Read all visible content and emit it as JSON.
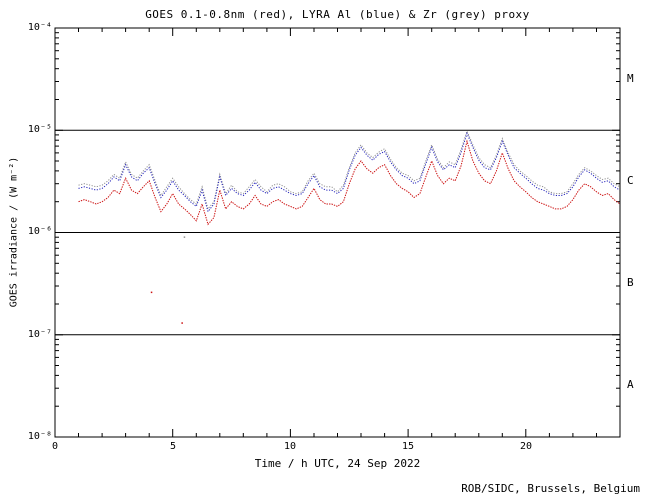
{
  "page": {
    "footer": "ROB/SIDC, Brussels, Belgium"
  },
  "chart_data": {
    "type": "line",
    "title": "GOES 0.1-0.8nm (red), LYRA Al (blue) & Zr (grey) proxy",
    "xlabel": "Time / h UTC, 24 Sep 2022",
    "ylabel": "GOES irradiance / (W m⁻²)",
    "xlim": [
      0,
      24
    ],
    "ylim": [
      1e-08,
      0.0001
    ],
    "y_scale": "log",
    "grid": false,
    "legend_position": "none (colors named in title)",
    "x_major_ticks": [
      0,
      5,
      10,
      15,
      20
    ],
    "x_tick_labels": [
      "0",
      "5",
      "10",
      "15",
      "20"
    ],
    "y_tick_labels": [
      "10⁻⁴",
      "10⁻⁵",
      "10⁻⁶",
      "10⁻⁷",
      "10⁻⁸"
    ],
    "hlines": [
      1e-05,
      1e-06,
      1e-07
    ],
    "flare_class_labels": [
      {
        "label": "M",
        "y": 3.16e-05
      },
      {
        "label": "C",
        "y": 3.16e-06
      },
      {
        "label": "B",
        "y": 3.16e-07
      },
      {
        "label": "A",
        "y": 3.16e-08
      }
    ],
    "value_scale": 1e-06,
    "x": [
      1,
      1.25,
      1.5,
      1.75,
      2,
      2.25,
      2.5,
      2.75,
      3,
      3.25,
      3.5,
      3.75,
      4,
      4.25,
      4.5,
      4.75,
      5,
      5.25,
      5.5,
      5.75,
      6,
      6.25,
      6.5,
      6.75,
      7,
      7.25,
      7.5,
      7.75,
      8,
      8.25,
      8.5,
      8.75,
      9,
      9.25,
      9.5,
      9.75,
      10,
      10.25,
      10.5,
      10.75,
      11,
      11.25,
      11.5,
      11.75,
      12,
      12.25,
      12.5,
      12.75,
      13,
      13.25,
      13.5,
      13.75,
      14,
      14.25,
      14.5,
      14.75,
      15,
      15.25,
      15.5,
      15.75,
      16,
      16.25,
      16.5,
      16.75,
      17,
      17.25,
      17.5,
      17.75,
      18,
      18.25,
      18.5,
      18.75,
      19,
      19.25,
      19.5,
      19.75,
      20,
      20.25,
      20.5,
      20.75,
      21,
      21.25,
      21.5,
      21.75,
      22,
      22.25,
      22.5,
      22.75,
      23,
      23.25,
      23.5,
      23.75,
      24
    ],
    "series": [
      {
        "name": "LYRA Zr proxy",
        "color": "#909090",
        "dash": "1.2,1.5",
        "values": [
          2.9,
          3.0,
          2.9,
          2.8,
          2.9,
          3.2,
          3.7,
          3.4,
          4.9,
          3.7,
          3.4,
          4.0,
          4.6,
          3.2,
          2.3,
          2.8,
          3.4,
          2.8,
          2.4,
          2.1,
          1.9,
          2.8,
          1.7,
          2.0,
          3.7,
          2.4,
          2.9,
          2.5,
          2.4,
          2.8,
          3.3,
          2.8,
          2.5,
          2.9,
          3.0,
          2.8,
          2.5,
          2.4,
          2.5,
          3.2,
          3.8,
          3.0,
          2.8,
          2.8,
          2.5,
          2.9,
          4.3,
          6.0,
          7.2,
          6.0,
          5.4,
          6.1,
          6.6,
          5.2,
          4.3,
          3.8,
          3.6,
          3.2,
          3.4,
          5.0,
          7.2,
          5.2,
          4.3,
          4.9,
          4.6,
          6.5,
          9.8,
          7.2,
          5.4,
          4.6,
          4.3,
          5.7,
          8.3,
          6.0,
          4.6,
          4.0,
          3.6,
          3.2,
          2.9,
          2.8,
          2.5,
          2.4,
          2.4,
          2.5,
          3.0,
          3.7,
          4.3,
          4.0,
          3.6,
          3.3,
          3.4,
          3.0,
          2.8
        ]
      },
      {
        "name": "LYRA Al proxy",
        "color": "#2323bb",
        "dash": "1.2,1.5",
        "values": [
          2.7,
          2.8,
          2.7,
          2.6,
          2.7,
          3.0,
          3.5,
          3.2,
          4.6,
          3.5,
          3.2,
          3.8,
          4.3,
          3.0,
          2.2,
          2.6,
          3.2,
          2.6,
          2.3,
          2.0,
          1.8,
          2.6,
          1.6,
          1.9,
          3.5,
          2.3,
          2.7,
          2.4,
          2.3,
          2.6,
          3.1,
          2.6,
          2.4,
          2.7,
          2.8,
          2.6,
          2.4,
          2.3,
          2.4,
          3.0,
          3.6,
          2.8,
          2.6,
          2.6,
          2.4,
          2.7,
          4.1,
          5.7,
          6.8,
          5.7,
          5.1,
          5.8,
          6.2,
          4.9,
          4.1,
          3.6,
          3.4,
          3.0,
          3.2,
          4.7,
          6.8,
          4.9,
          4.1,
          4.6,
          4.3,
          6.1,
          9.3,
          6.8,
          5.1,
          4.3,
          4.1,
          5.4,
          7.8,
          5.7,
          4.3,
          3.8,
          3.4,
          3.0,
          2.7,
          2.6,
          2.4,
          2.3,
          2.3,
          2.4,
          2.8,
          3.5,
          4.1,
          3.8,
          3.4,
          3.1,
          3.2,
          2.8,
          2.6
        ]
      },
      {
        "name": "GOES 0.1-0.8nm",
        "color": "#cc1111",
        "dash": "1.4,1.1",
        "values": [
          2.0,
          2.1,
          2.0,
          1.9,
          2.0,
          2.2,
          2.6,
          2.4,
          3.4,
          2.6,
          2.4,
          2.8,
          3.2,
          2.2,
          1.6,
          1.9,
          2.4,
          1.9,
          1.7,
          1.5,
          1.3,
          1.9,
          1.2,
          1.4,
          2.6,
          1.7,
          2.0,
          1.8,
          1.7,
          1.9,
          2.3,
          1.9,
          1.8,
          2.0,
          2.1,
          1.9,
          1.8,
          1.7,
          1.8,
          2.2,
          2.7,
          2.1,
          1.9,
          1.9,
          1.8,
          2.0,
          3.0,
          4.2,
          5.0,
          4.2,
          3.8,
          4.3,
          4.6,
          3.6,
          3.0,
          2.7,
          2.5,
          2.2,
          2.4,
          3.5,
          5.0,
          3.6,
          3.0,
          3.4,
          3.2,
          4.5,
          7.8,
          5.0,
          3.8,
          3.2,
          3.0,
          4.0,
          6.0,
          4.2,
          3.2,
          2.8,
          2.5,
          2.2,
          2.0,
          1.9,
          1.8,
          1.7,
          1.7,
          1.8,
          2.1,
          2.6,
          3.0,
          2.8,
          2.5,
          2.3,
          2.4,
          2.1,
          1.9
        ]
      }
    ],
    "stray_points": [
      {
        "x": 4.1,
        "y": 2.6e-07,
        "color": "#cc1111"
      },
      {
        "x": 5.4,
        "y": 1.3e-07,
        "color": "#cc1111"
      },
      {
        "x": 5.5,
        "y": 9e-07,
        "color": "#909090"
      }
    ]
  }
}
